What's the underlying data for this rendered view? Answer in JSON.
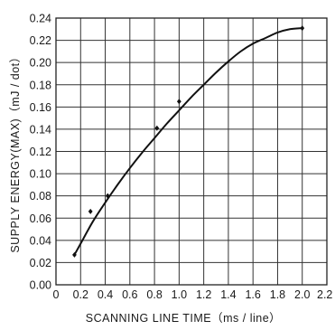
{
  "chart_data": {
    "type": "line",
    "xlabel": "SCANNING LINE TIME（ms / line）",
    "ylabel": "SUPPLY ENERGY(MAX)（mJ / dot）",
    "xlim": [
      0,
      2.2
    ],
    "ylim": [
      0,
      0.24
    ],
    "grid": true,
    "x_ticks": [
      "0",
      "0.2",
      "0.4",
      "0.6",
      "0.8",
      "1.0",
      "1.2",
      "1.4",
      "1.6",
      "1.8",
      "2.0",
      "2.2"
    ],
    "y_ticks": [
      "0.00",
      "0.02",
      "0.04",
      "0.06",
      "0.08",
      "0.10",
      "0.12",
      "0.14",
      "0.16",
      "0.18",
      "0.20",
      "0.22",
      "0.24"
    ],
    "series": [
      {
        "type": "scatter",
        "x": [
          0.15,
          0.28,
          0.42,
          0.82,
          1.0,
          2.0
        ],
        "y": [
          0.027,
          0.066,
          0.08,
          0.141,
          0.165,
          0.231
        ]
      },
      {
        "type": "line",
        "x": [
          0.15,
          0.2,
          0.3,
          0.4,
          0.5,
          0.6,
          0.7,
          0.8,
          0.9,
          1.0,
          1.1,
          1.2,
          1.3,
          1.4,
          1.5,
          1.6,
          1.7,
          1.8,
          1.9,
          2.0
        ],
        "y": [
          0.027,
          0.037,
          0.057,
          0.074,
          0.09,
          0.105,
          0.119,
          0.132,
          0.145,
          0.157,
          0.169,
          0.18,
          0.191,
          0.201,
          0.21,
          0.217,
          0.222,
          0.227,
          0.23,
          0.231
        ]
      }
    ]
  }
}
